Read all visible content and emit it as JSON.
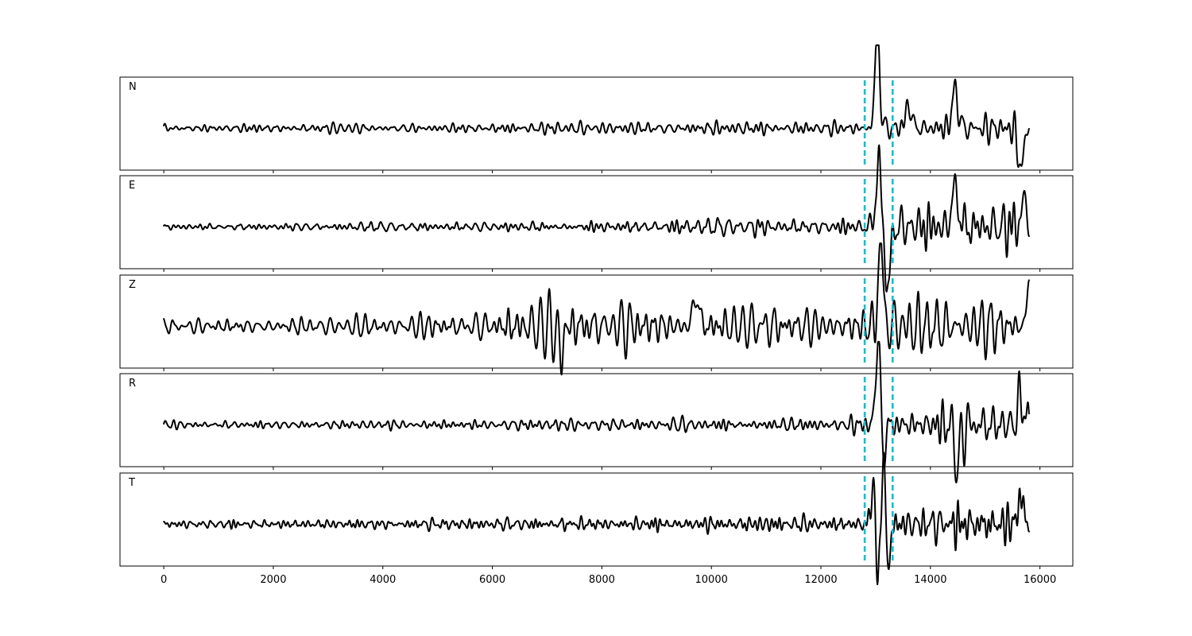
{
  "chart_data": {
    "type": "line",
    "title": "",
    "xlabel": "",
    "ylabel": "",
    "xlim": [
      -800,
      16600
    ],
    "x_ticks": [
      0,
      2000,
      4000,
      6000,
      8000,
      10000,
      12000,
      14000,
      16000
    ],
    "x_tick_labels": [
      "0",
      "2000",
      "4000",
      "6000",
      "8000",
      "10000",
      "12000",
      "14000",
      "16000"
    ],
    "samples": 15800,
    "grid": false,
    "shared_x": true,
    "line_color": "#000000",
    "markers": {
      "color": "#17becf",
      "style": "dashed",
      "x": [
        12800,
        13310
      ]
    },
    "panels": [
      {
        "label": "N",
        "seed": 11,
        "profile": [
          [
            0,
            0.13
          ],
          [
            6000,
            0.16
          ],
          [
            9000,
            0.25
          ],
          [
            12000,
            0.22
          ],
          [
            12800,
            0.28
          ],
          [
            12990,
            0.55
          ],
          [
            13150,
            0.42
          ],
          [
            13320,
            0.36
          ],
          [
            14500,
            0.45
          ],
          [
            15800,
            0.55
          ]
        ],
        "events": [
          [
            13030,
            2.3,
            90
          ],
          [
            13600,
            0.5,
            120
          ],
          [
            14450,
            0.9,
            110
          ],
          [
            15650,
            -0.9,
            110
          ]
        ]
      },
      {
        "label": "E",
        "seed": 23,
        "profile": [
          [
            0,
            0.1
          ],
          [
            6000,
            0.14
          ],
          [
            9500,
            0.25
          ],
          [
            12000,
            0.24
          ],
          [
            12800,
            0.3
          ],
          [
            13050,
            0.9
          ],
          [
            13300,
            0.7
          ],
          [
            14500,
            0.85
          ],
          [
            15800,
            0.75
          ]
        ],
        "events": [
          [
            13050,
            1.55,
            90
          ],
          [
            13220,
            -1.5,
            90
          ],
          [
            14450,
            0.95,
            110
          ],
          [
            15700,
            0.5,
            120
          ]
        ]
      },
      {
        "label": "Z",
        "seed": 37,
        "profile": [
          [
            0,
            0.25
          ],
          [
            4000,
            0.3
          ],
          [
            6000,
            0.5
          ],
          [
            6300,
            0.85
          ],
          [
            9000,
            0.8
          ],
          [
            12000,
            0.55
          ],
          [
            12800,
            0.65
          ],
          [
            13000,
            1.2
          ],
          [
            13300,
            0.95
          ],
          [
            14500,
            1.0
          ],
          [
            15800,
            0.85
          ]
        ],
        "events": [
          [
            13090,
            1.9,
            90
          ],
          [
            7250,
            -0.6,
            100
          ],
          [
            9720,
            0.7,
            110
          ],
          [
            15800,
            0.9,
            90
          ]
        ]
      },
      {
        "label": "R",
        "seed": 53,
        "profile": [
          [
            0,
            0.12
          ],
          [
            6000,
            0.16
          ],
          [
            8000,
            0.22
          ],
          [
            12000,
            0.22
          ],
          [
            12800,
            0.28
          ],
          [
            13000,
            0.45
          ],
          [
            13300,
            0.45
          ],
          [
            14500,
            0.95
          ],
          [
            15800,
            0.8
          ]
        ],
        "events": [
          [
            13050,
            2.2,
            90
          ],
          [
            13130,
            -1.0,
            80
          ],
          [
            14500,
            -0.9,
            110
          ],
          [
            15650,
            0.6,
            120
          ]
        ]
      },
      {
        "label": "T",
        "seed": 71,
        "profile": [
          [
            0,
            0.12
          ],
          [
            6000,
            0.17
          ],
          [
            9000,
            0.25
          ],
          [
            12000,
            0.25
          ],
          [
            12800,
            0.22
          ],
          [
            12950,
            0.6
          ],
          [
            13150,
            0.6
          ],
          [
            13320,
            0.4
          ],
          [
            14500,
            0.75
          ],
          [
            15800,
            0.8
          ]
        ],
        "events": [
          [
            12970,
            1.4,
            80
          ],
          [
            13030,
            -1.9,
            70
          ],
          [
            13150,
            1.7,
            80
          ],
          [
            13220,
            -1.3,
            80
          ],
          [
            15650,
            0.6,
            110
          ]
        ]
      }
    ]
  }
}
